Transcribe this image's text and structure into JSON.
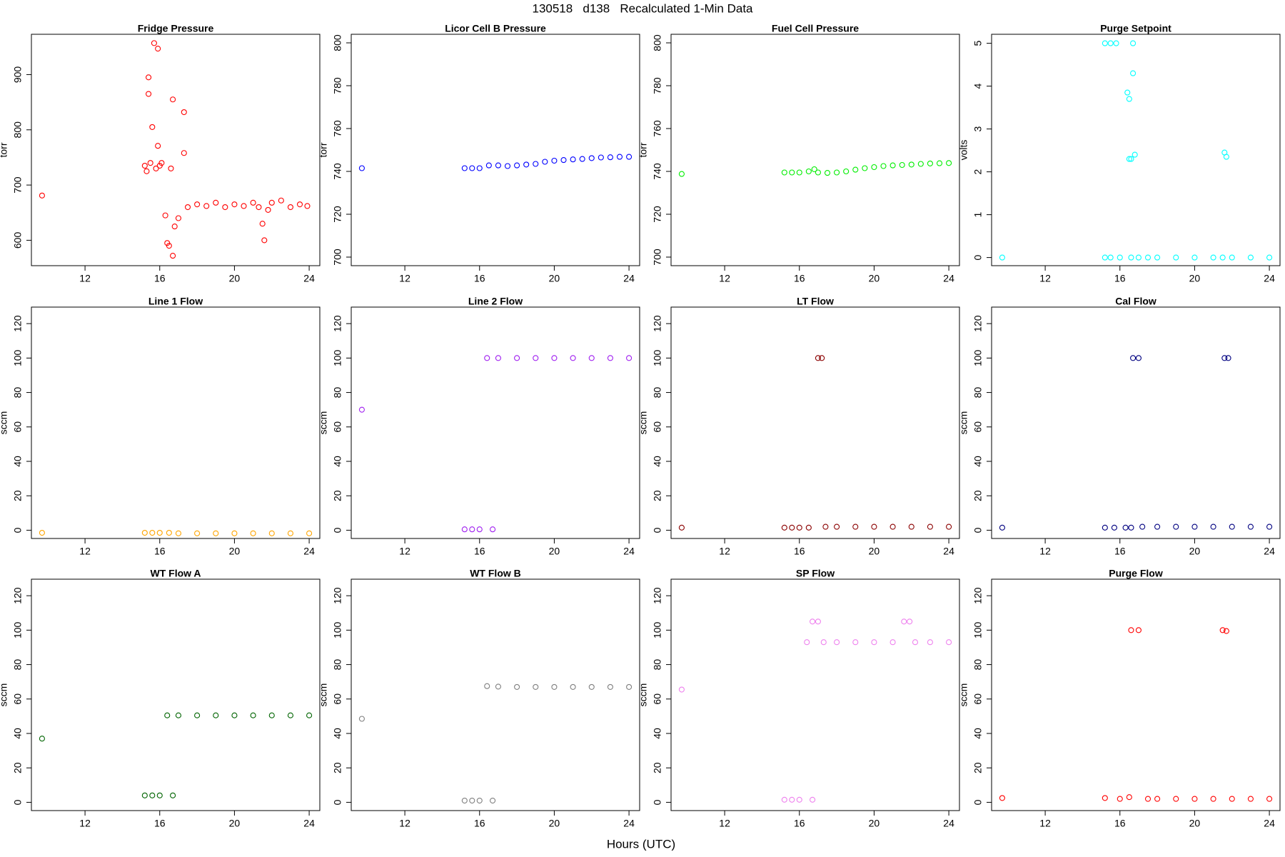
{
  "title": "130518   d138   Recalculated 1-Min Data",
  "x_label": "Hours (UTC)",
  "chart_data": [
    {
      "type": "scatter",
      "title": "Fridge Pressure",
      "y_label": "torr",
      "color": "#ff0000",
      "x": [
        9.7,
        15.2,
        15.3,
        15.4,
        15.4,
        15.5,
        15.6,
        15.7,
        15.8,
        15.9,
        15.9,
        16.0,
        16.1,
        16.3,
        16.4,
        16.5,
        16.6,
        16.7,
        16.7,
        16.8,
        17.0,
        17.3,
        17.3,
        17.5,
        18,
        18.5,
        19,
        19.5,
        20,
        20.5,
        21,
        21.3,
        21.5,
        21.6,
        21.8,
        22,
        22.5,
        23,
        23.5,
        23.9
      ],
      "values": [
        681,
        735,
        725,
        895,
        865,
        740,
        805,
        957,
        730,
        947,
        771,
        735,
        740,
        645,
        595,
        590,
        730,
        855,
        572,
        625,
        640,
        832,
        758,
        660,
        665,
        662,
        668,
        660,
        665,
        662,
        668,
        660,
        630,
        600,
        655,
        668,
        672,
        660,
        665,
        662
      ],
      "xlim": [
        9.13,
        24.57
      ],
      "xticks": [
        12,
        16,
        20,
        24
      ],
      "ylim": [
        554,
        973
      ],
      "yticks": [
        600,
        700,
        800,
        900
      ]
    },
    {
      "type": "scatter",
      "title": "Licor Cell B Pressure",
      "y_label": "torr",
      "color": "#0000ff",
      "x": [
        9.7,
        15.2,
        15.6,
        16,
        16.5,
        17,
        17.5,
        18,
        18.5,
        19,
        19.5,
        20,
        20.5,
        21,
        21.5,
        22,
        22.5,
        23,
        23.5,
        24
      ],
      "values": [
        741.5,
        741.5,
        741.5,
        741.5,
        742.8,
        742.8,
        742.5,
        742.8,
        743.2,
        743.5,
        744.5,
        745,
        745.3,
        745.6,
        745.8,
        746.2,
        746.5,
        746.6,
        746.8,
        746.8
      ],
      "xlim": [
        9.13,
        24.57
      ],
      "xticks": [
        12,
        16,
        20,
        24
      ],
      "ylim": [
        696,
        804
      ],
      "yticks": [
        700,
        720,
        740,
        760,
        780,
        800
      ]
    },
    {
      "type": "scatter",
      "title": "Fuel Cell Pressure",
      "y_label": "torr",
      "color": "#00ee00",
      "x": [
        9.7,
        15.2,
        15.6,
        16,
        16.5,
        16.8,
        17,
        17.5,
        18,
        18.5,
        19,
        19.5,
        20,
        20.5,
        21,
        21.5,
        22,
        22.5,
        23,
        23.5,
        24
      ],
      "values": [
        738.8,
        739.5,
        739.5,
        739.5,
        740,
        741,
        739.5,
        739.3,
        739.5,
        740,
        740.8,
        741.5,
        742,
        742.5,
        742.8,
        743,
        743.2,
        743.5,
        743.7,
        743.8,
        743.9
      ],
      "xlim": [
        9.13,
        24.57
      ],
      "xticks": [
        12,
        16,
        20,
        24
      ],
      "ylim": [
        696,
        804
      ],
      "yticks": [
        700,
        720,
        740,
        760,
        780,
        800
      ]
    },
    {
      "type": "scatter",
      "title": "Purge Setpoint",
      "y_label": "volts",
      "color": "#00ffff",
      "x": [
        9.7,
        15.2,
        15.5,
        15.8,
        15.2,
        15.5,
        16,
        16.4,
        16.5,
        16.5,
        16.6,
        16.7,
        16.7,
        16.8,
        16.6,
        17,
        17.5,
        18,
        19,
        20,
        21,
        21.6,
        21.7,
        21.5,
        22,
        23,
        24
      ],
      "values": [
        0,
        5,
        5,
        5,
        0,
        0,
        0,
        3.85,
        3.7,
        2.3,
        2.3,
        5,
        4.3,
        2.4,
        0,
        0,
        0,
        0,
        0,
        0,
        0,
        2.45,
        2.35,
        0,
        0,
        0,
        0
      ],
      "xlim": [
        9.13,
        24.57
      ],
      "xticks": [
        12,
        16,
        20,
        24
      ],
      "ylim": [
        -0.19,
        5.21
      ],
      "yticks": [
        0,
        1,
        2,
        3,
        4,
        5
      ]
    },
    {
      "type": "scatter",
      "title": "Line 1 Flow",
      "y_label": "sccm",
      "color": "#ffa500",
      "x": [
        9.7,
        15.2,
        15.6,
        16,
        16.5,
        17,
        18,
        19,
        20,
        21,
        22,
        23,
        24
      ],
      "values": [
        -1.5,
        -1.5,
        -1.5,
        -1.5,
        -1.5,
        -1.8,
        -1.8,
        -1.8,
        -1.8,
        -1.8,
        -1.8,
        -1.8,
        -1.8
      ],
      "xlim": [
        9.13,
        24.57
      ],
      "xticks": [
        12,
        16,
        20,
        24
      ],
      "ylim": [
        -4.8,
        129.6
      ],
      "yticks": [
        0,
        20,
        40,
        60,
        80,
        100,
        120
      ]
    },
    {
      "type": "scatter",
      "title": "Line 2 Flow",
      "y_label": "sccm",
      "color": "#a020f0",
      "x": [
        9.7,
        15.2,
        15.6,
        16,
        16.7,
        16.4,
        17,
        18,
        19,
        20,
        21,
        22,
        23,
        24
      ],
      "values": [
        70,
        0.5,
        0.5,
        0.5,
        0.5,
        100,
        100,
        100,
        100,
        100,
        100,
        100,
        100,
        100
      ],
      "xlim": [
        9.13,
        24.57
      ],
      "xticks": [
        12,
        16,
        20,
        24
      ],
      "ylim": [
        -4.8,
        129.6
      ],
      "yticks": [
        0,
        20,
        40,
        60,
        80,
        100,
        120
      ]
    },
    {
      "type": "scatter",
      "title": "LT Flow",
      "y_label": "sccm",
      "color": "#8b0000",
      "x": [
        9.7,
        15.2,
        15.6,
        16,
        16.5,
        17,
        17.2,
        17.4,
        18,
        19,
        20,
        21,
        22,
        23,
        24
      ],
      "values": [
        1.5,
        1.5,
        1.5,
        1.5,
        1.5,
        100,
        100,
        2,
        2,
        2,
        2,
        2,
        2,
        2,
        2
      ],
      "xlim": [
        9.13,
        24.57
      ],
      "xticks": [
        12,
        16,
        20,
        24
      ],
      "ylim": [
        -4.8,
        129.6
      ],
      "yticks": [
        0,
        20,
        40,
        60,
        80,
        100,
        120
      ]
    },
    {
      "type": "scatter",
      "title": "Cal Flow",
      "y_label": "sccm",
      "color": "#000080",
      "x": [
        9.7,
        15.2,
        15.7,
        16.3,
        16.6,
        16.7,
        17,
        17.2,
        18,
        19,
        20,
        21,
        21.6,
        21.8,
        22,
        23,
        24
      ],
      "values": [
        1.5,
        1.5,
        1.5,
        1.5,
        1.5,
        100,
        100,
        2,
        2,
        2,
        2,
        2,
        100,
        100,
        2,
        2,
        2
      ],
      "xlim": [
        9.13,
        24.57
      ],
      "xticks": [
        12,
        16,
        20,
        24
      ],
      "ylim": [
        -4.8,
        129.6
      ],
      "yticks": [
        0,
        20,
        40,
        60,
        80,
        100,
        120
      ]
    },
    {
      "type": "scatter",
      "title": "WT Flow A",
      "y_label": "sccm",
      "color": "#006400",
      "x": [
        9.7,
        15.2,
        15.6,
        16,
        16.7,
        16.4,
        17,
        18,
        19,
        20,
        21,
        22,
        23,
        24
      ],
      "values": [
        37,
        4,
        4,
        4,
        4,
        50.5,
        50.5,
        50.5,
        50.5,
        50.5,
        50.5,
        50.5,
        50.5,
        50.5
      ],
      "xlim": [
        9.13,
        24.57
      ],
      "xticks": [
        12,
        16,
        20,
        24
      ],
      "ylim": [
        -4.8,
        129.6
      ],
      "yticks": [
        0,
        20,
        40,
        60,
        80,
        100,
        120
      ]
    },
    {
      "type": "scatter",
      "title": "WT Flow B",
      "y_label": "sccm",
      "color": "#808080",
      "x": [
        9.7,
        15.2,
        15.6,
        16,
        16.7,
        16.4,
        17,
        18,
        19,
        20,
        21,
        22,
        23,
        24
      ],
      "values": [
        48.5,
        1,
        1,
        1,
        1,
        67.5,
        67.2,
        67,
        67,
        67,
        67,
        67,
        67,
        67
      ],
      "xlim": [
        9.13,
        24.57
      ],
      "xticks": [
        12,
        16,
        20,
        24
      ],
      "ylim": [
        -4.8,
        129.6
      ],
      "yticks": [
        0,
        20,
        40,
        60,
        80,
        100,
        120
      ]
    },
    {
      "type": "scatter",
      "title": "SP Flow",
      "y_label": "sccm",
      "color": "#ee82ee",
      "x": [
        9.7,
        15.2,
        15.6,
        16,
        16.7,
        16.4,
        16.7,
        17,
        17.3,
        18,
        19,
        20,
        21,
        21.6,
        21.9,
        22.2,
        23,
        24
      ],
      "values": [
        65.5,
        1.5,
        1.5,
        1.5,
        1.5,
        93,
        105,
        105,
        93,
        93,
        93,
        93,
        93,
        105,
        105,
        93,
        93,
        93
      ],
      "xlim": [
        9.13,
        24.57
      ],
      "xticks": [
        12,
        16,
        20,
        24
      ],
      "ylim": [
        -4.8,
        129.6
      ],
      "yticks": [
        0,
        20,
        40,
        60,
        80,
        100,
        120
      ]
    },
    {
      "type": "scatter",
      "title": "Purge Flow",
      "y_label": "sccm",
      "color": "#ff0000",
      "x": [
        9.7,
        15.2,
        16,
        16.5,
        16.6,
        17,
        17.5,
        18,
        19,
        20,
        21,
        21.5,
        21.7,
        22,
        23,
        24
      ],
      "values": [
        2.5,
        2.5,
        2,
        3,
        100,
        100,
        2,
        2,
        2,
        2,
        2,
        100,
        99.5,
        2,
        2,
        2
      ],
      "xlim": [
        9.13,
        24.57
      ],
      "xticks": [
        12,
        16,
        20,
        24
      ],
      "ylim": [
        -4.8,
        129.6
      ],
      "yticks": [
        0,
        20,
        40,
        60,
        80,
        100,
        120
      ]
    }
  ]
}
